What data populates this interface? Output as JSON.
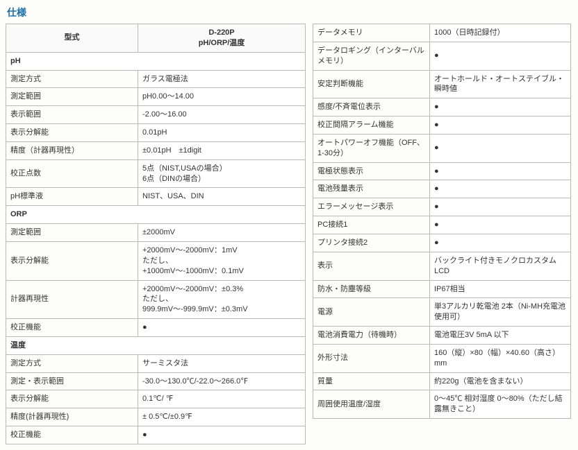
{
  "title": "仕様",
  "left": {
    "header": {
      "c1": "型式",
      "c2": "D-220P\npH/ORP/温度"
    },
    "rows": [
      {
        "type": "section",
        "label": "pH"
      },
      {
        "label": "測定方式",
        "value": "ガラス電極法"
      },
      {
        "label": "測定範囲",
        "value": "pH0.00～14.00"
      },
      {
        "label": "表示範囲",
        "value": "-2.00～16.00"
      },
      {
        "label": "表示分解能",
        "value": "0.01pH"
      },
      {
        "label": "精度（計器再現性）",
        "value": "±0.01pH　±1digit"
      },
      {
        "label": "校正点数",
        "value": "5点（NIST,USAの場合）\n6点（DINの場合）"
      },
      {
        "label": "pH標準液",
        "value": "NIST、USA、DIN"
      },
      {
        "type": "section",
        "label": "ORP"
      },
      {
        "label": "測定範囲",
        "value": "±2000mV"
      },
      {
        "label": "表示分解能",
        "value": "+2000mV～-2000mV：1mV\nただし、\n+1000mV～-1000mV：0.1mV"
      },
      {
        "label": "計器再現性",
        "value": "+2000mV～-2000mV：±0.3%\nただし、\n999.9mV～-999.9mV：±0.3mV"
      },
      {
        "label": "校正機能",
        "value": "●"
      },
      {
        "type": "section",
        "label": "温度"
      },
      {
        "label": "測定方式",
        "value": "サーミスタ法"
      },
      {
        "label": "測定・表示範囲",
        "value": "-30.0～130.0℃/-22.0～266.0℉"
      },
      {
        "label": "表示分解能",
        "value": "0.1℃/ ℉"
      },
      {
        "label": "精度(計器再現性)",
        "value": "± 0.5℃/±0.9℉"
      },
      {
        "label": "校正機能",
        "value": "●"
      }
    ]
  },
  "right": {
    "rows": [
      {
        "label": "データメモリ",
        "value": "1000（日時記録付）"
      },
      {
        "label": "データロギング（インターバルメモリ）",
        "value": "●"
      },
      {
        "label": "安定判断機能",
        "value": "オートホールド・オートステイブル・瞬時値"
      },
      {
        "label": "感度/不斉電位表示",
        "value": "●"
      },
      {
        "label": "校正間隔アラーム機能",
        "value": "●"
      },
      {
        "label": "オートパワーオフ機能（OFF、1-30分）",
        "value": "●"
      },
      {
        "label": "電極状態表示",
        "value": "●"
      },
      {
        "label": "電池残量表示",
        "value": "●"
      },
      {
        "label": "エラーメッセージ表示",
        "value": "●"
      },
      {
        "label": "PC接続1",
        "value": "●"
      },
      {
        "label": "プリンタ接続2",
        "value": "●"
      },
      {
        "label": "表示",
        "value": "バックライト付きモノクロカスタムLCD"
      },
      {
        "label": "防水・防塵等級",
        "value": "IP67相当"
      },
      {
        "label": "電源",
        "value": "単3アルカリ乾電池 2本（Ni-MH充電池使用可）"
      },
      {
        "label": "電池消費電力（待機時）",
        "value": "電池電圧3V 5mA 以下"
      },
      {
        "label": "外形寸法",
        "value": "160（縦）×80（幅）×40.60（高さ） mm"
      },
      {
        "label": "質量",
        "value": "約220g（電池を含まない）"
      },
      {
        "label": "周囲使用温度/湿度",
        "value": "0～45℃ 相対湿度 0～80%（ただし結露無きこと）"
      }
    ]
  }
}
